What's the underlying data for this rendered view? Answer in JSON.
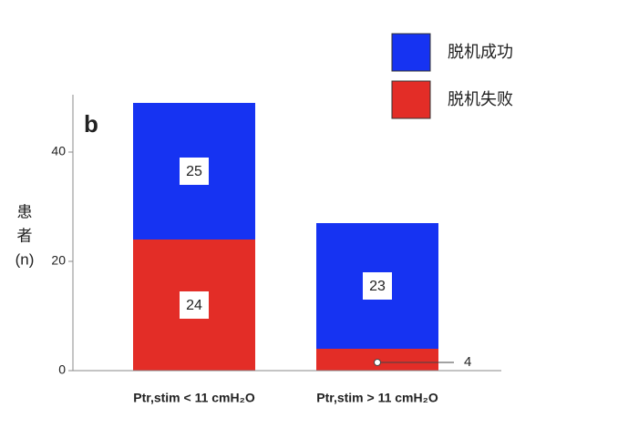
{
  "chart_data": {
    "type": "stacked-bar",
    "annotation": "b",
    "ylabel": [
      "患",
      "者",
      "(n)"
    ],
    "categories": [
      "Ptr,stim < 11 cmH₂O",
      "Ptr,stim > 11 cmH₂O"
    ],
    "series": [
      {
        "name": "脱机失败",
        "color": "#e32d27",
        "values": [
          24,
          4
        ]
      },
      {
        "name": "脱机成功",
        "color": "#1633f2",
        "values": [
          25,
          23
        ]
      }
    ],
    "ylim": [
      0,
      50.5
    ],
    "yticks": [
      0,
      20,
      40
    ]
  }
}
